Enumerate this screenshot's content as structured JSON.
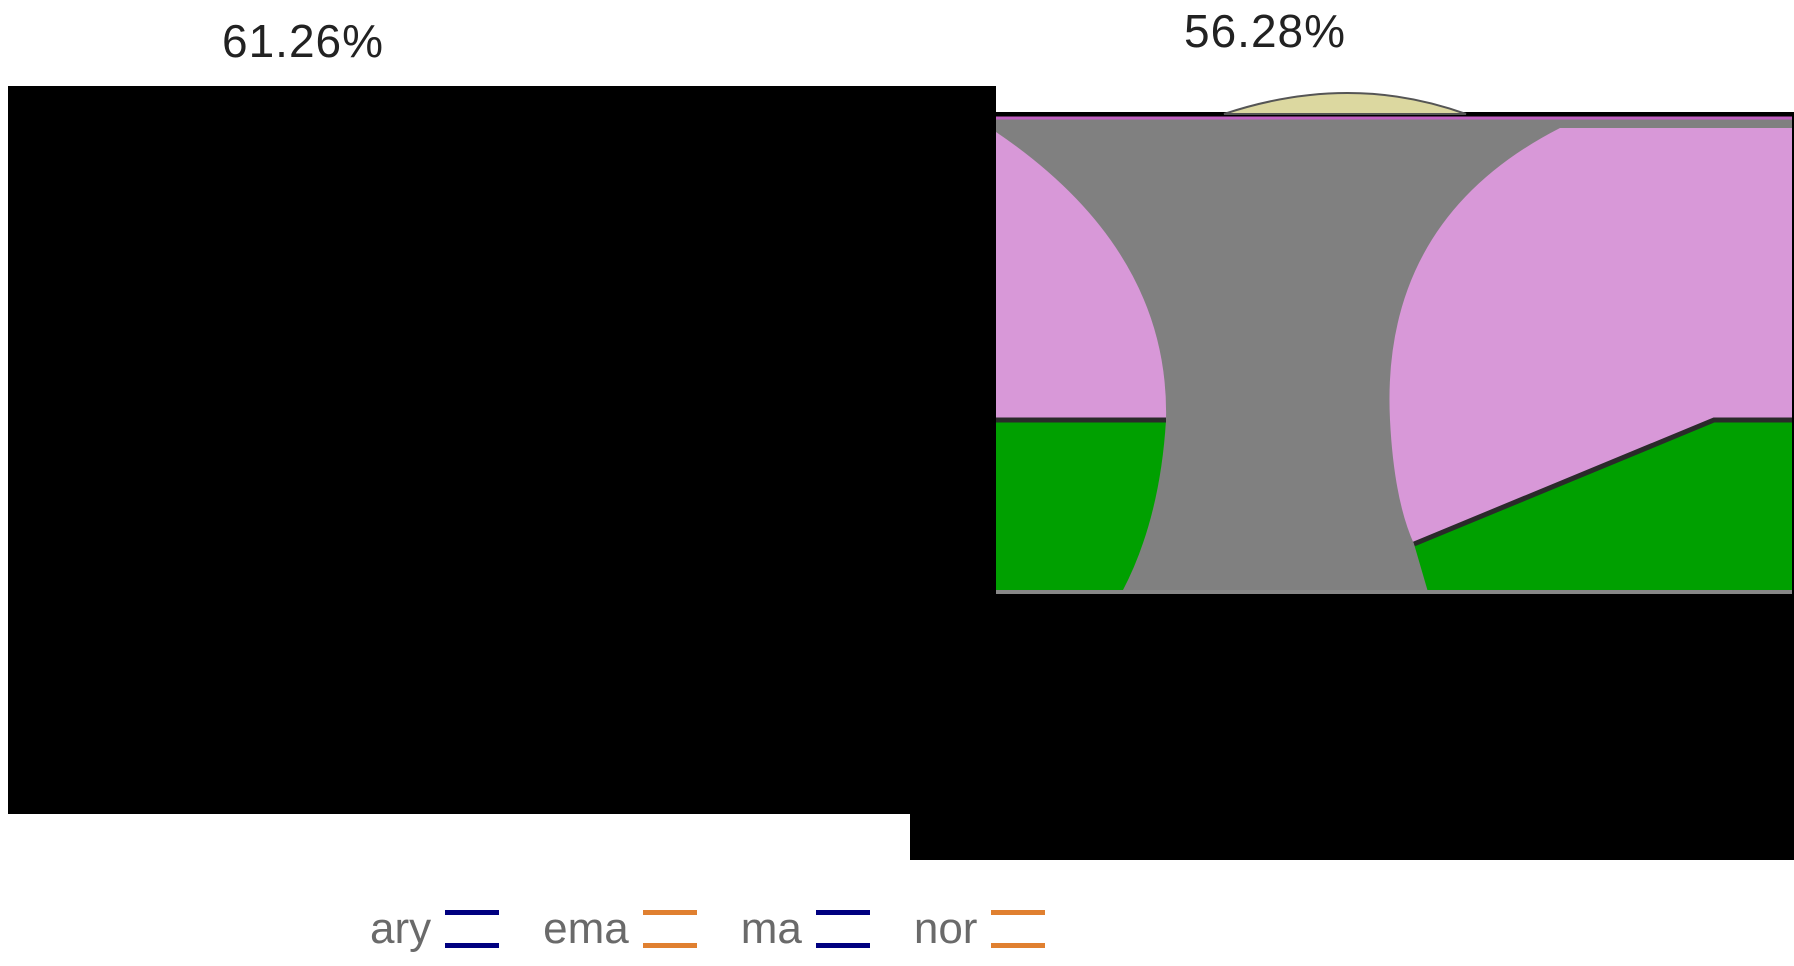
{
  "chart_data": [
    {
      "type": "area",
      "title": "61.26%",
      "panel": "left",
      "note": "plot area rendered fully black",
      "colors": {
        "background": "#000000"
      }
    },
    {
      "type": "area",
      "title": "56.28%",
      "panel": "right",
      "colors": {
        "pink": "#d898d8",
        "green": "#00a000",
        "gray": "#808080",
        "tan": "#dcd8a0",
        "background": "#000000"
      }
    }
  ],
  "legend": {
    "items": [
      {
        "label": "ary",
        "color": "#000080"
      },
      {
        "label": "ema",
        "color": "#e08030"
      },
      {
        "label": "ma",
        "color": "#000080"
      },
      {
        "label": "nor",
        "color": "#e08030"
      }
    ],
    "placement": "bottom"
  }
}
